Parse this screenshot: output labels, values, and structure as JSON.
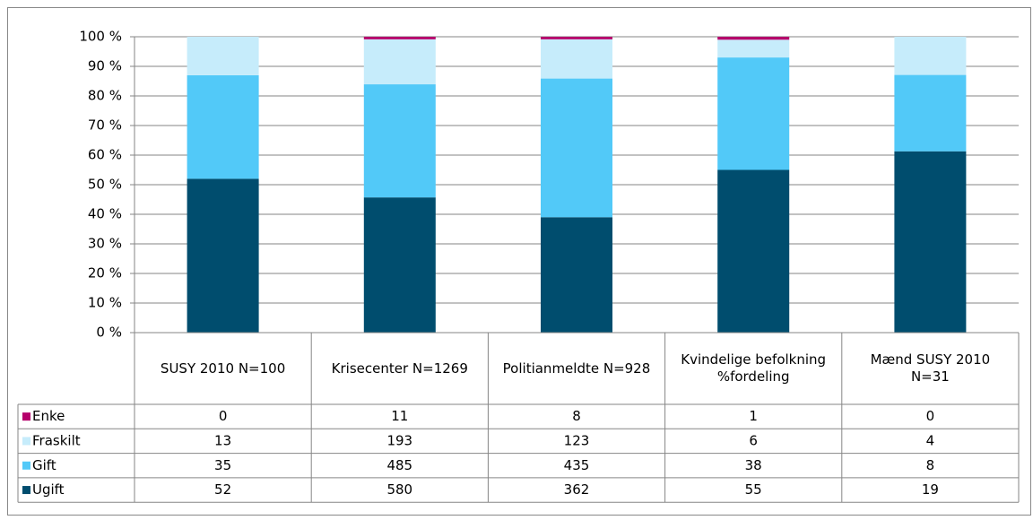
{
  "chart_data": {
    "type": "stacked_bar_100",
    "categories": [
      "SUSY 2010 N=100",
      "Krisecenter N=1269",
      "Politianmeldte N=928",
      "Kvindelige befolkning %fordeling",
      "Mænd SUSY 2010 N=31"
    ],
    "series": [
      {
        "name": "Enke",
        "color": "#b5006b",
        "values": [
          0,
          11,
          8,
          1,
          0
        ]
      },
      {
        "name": "Fraskilt",
        "color": "#c6ecfb",
        "values": [
          13,
          193,
          123,
          6,
          4
        ]
      },
      {
        "name": "Gift",
        "color": "#52c9f8",
        "values": [
          35,
          485,
          435,
          38,
          8
        ]
      },
      {
        "name": "Ugift",
        "color": "#004d6e",
        "values": [
          52,
          580,
          362,
          55,
          19
        ]
      }
    ],
    "ylim": [
      0,
      100
    ],
    "yticks": [
      {
        "value": 0,
        "label": "0 %"
      },
      {
        "value": 10,
        "label": "10 %"
      },
      {
        "value": 20,
        "label": "20 %"
      },
      {
        "value": 30,
        "label": "30 %"
      },
      {
        "value": 40,
        "label": "40 %"
      },
      {
        "value": 50,
        "label": "50 %"
      },
      {
        "value": 60,
        "label": "60 %"
      },
      {
        "value": 70,
        "label": "70 %"
      },
      {
        "value": 80,
        "label": "80 %"
      },
      {
        "value": 90,
        "label": "90 %"
      },
      {
        "value": 100,
        "label": "100 %"
      }
    ],
    "grid": true
  }
}
